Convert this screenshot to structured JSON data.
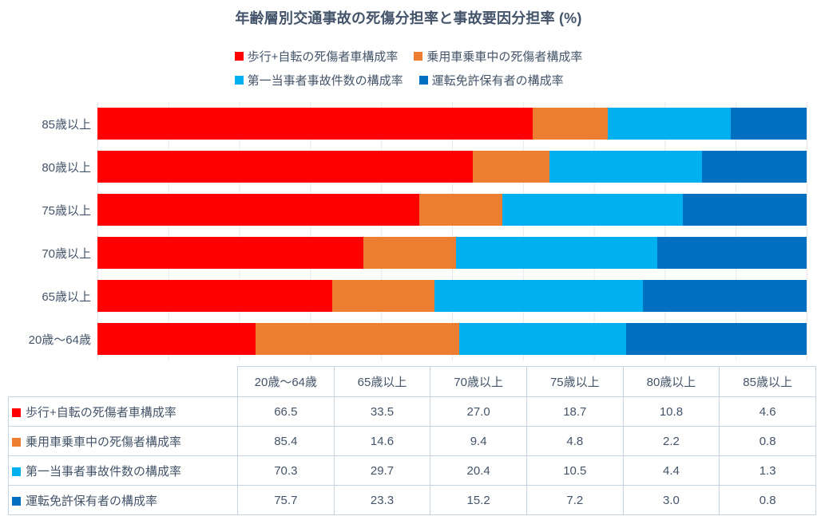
{
  "title": "年齢層別交通事故の死傷分担率と事故要因分担率 (%)",
  "colors": {
    "text": "#44546A",
    "gridline": "#E4E8ED",
    "table_border": "#C6D3E1",
    "background": "#FFFFFF",
    "series": [
      "#FF0000",
      "#ED7D31",
      "#00B0F0",
      "#0070C0"
    ]
  },
  "chart_data": {
    "type": "bar",
    "variant": "horizontal-100%-stacked with data table",
    "title": "年齢層別交通事故の死傷分担率と事故要因分担率 (%)",
    "bars_normalized_to_100_percent": true,
    "bar_categories_top_to_bottom": [
      "85歳以上",
      "80歳以上",
      "75歳以上",
      "70歳以上",
      "65歳以上",
      "20歳〜64歳"
    ],
    "categories": [
      "20歳〜64歳",
      "65歳以上",
      "70歳以上",
      "75歳以上",
      "80歳以上",
      "85歳以上"
    ],
    "series": [
      {
        "name": "歩行+自転の死傷者車構成率",
        "color": "#FF0000",
        "values": [
          "66.5",
          "33.5",
          "27.0",
          "18.7",
          "10.8",
          "4.6"
        ]
      },
      {
        "name": "乗用車乗車中の死傷者構成率",
        "color": "#ED7D31",
        "values": [
          "85.4",
          "14.6",
          "9.4",
          "4.8",
          "2.2",
          "0.8"
        ]
      },
      {
        "name": "第一当事者事故件数の構成率",
        "color": "#00B0F0",
        "values": [
          "70.3",
          "29.7",
          "20.4",
          "10.5",
          "4.4",
          "1.3"
        ]
      },
      {
        "name": "運転免許保有者の構成率",
        "color": "#0070C0",
        "values": [
          "75.7",
          "23.3",
          "15.2",
          "7.2",
          "3.0",
          "0.8"
        ]
      }
    ],
    "x_axis": {
      "min": 0,
      "max": 100,
      "gridline_step_percent": 10,
      "tick_labels_visible": false
    },
    "legend_position": "top",
    "legend_rows": [
      [
        0,
        1
      ],
      [
        2,
        3
      ]
    ],
    "grid": "vertical-only"
  }
}
